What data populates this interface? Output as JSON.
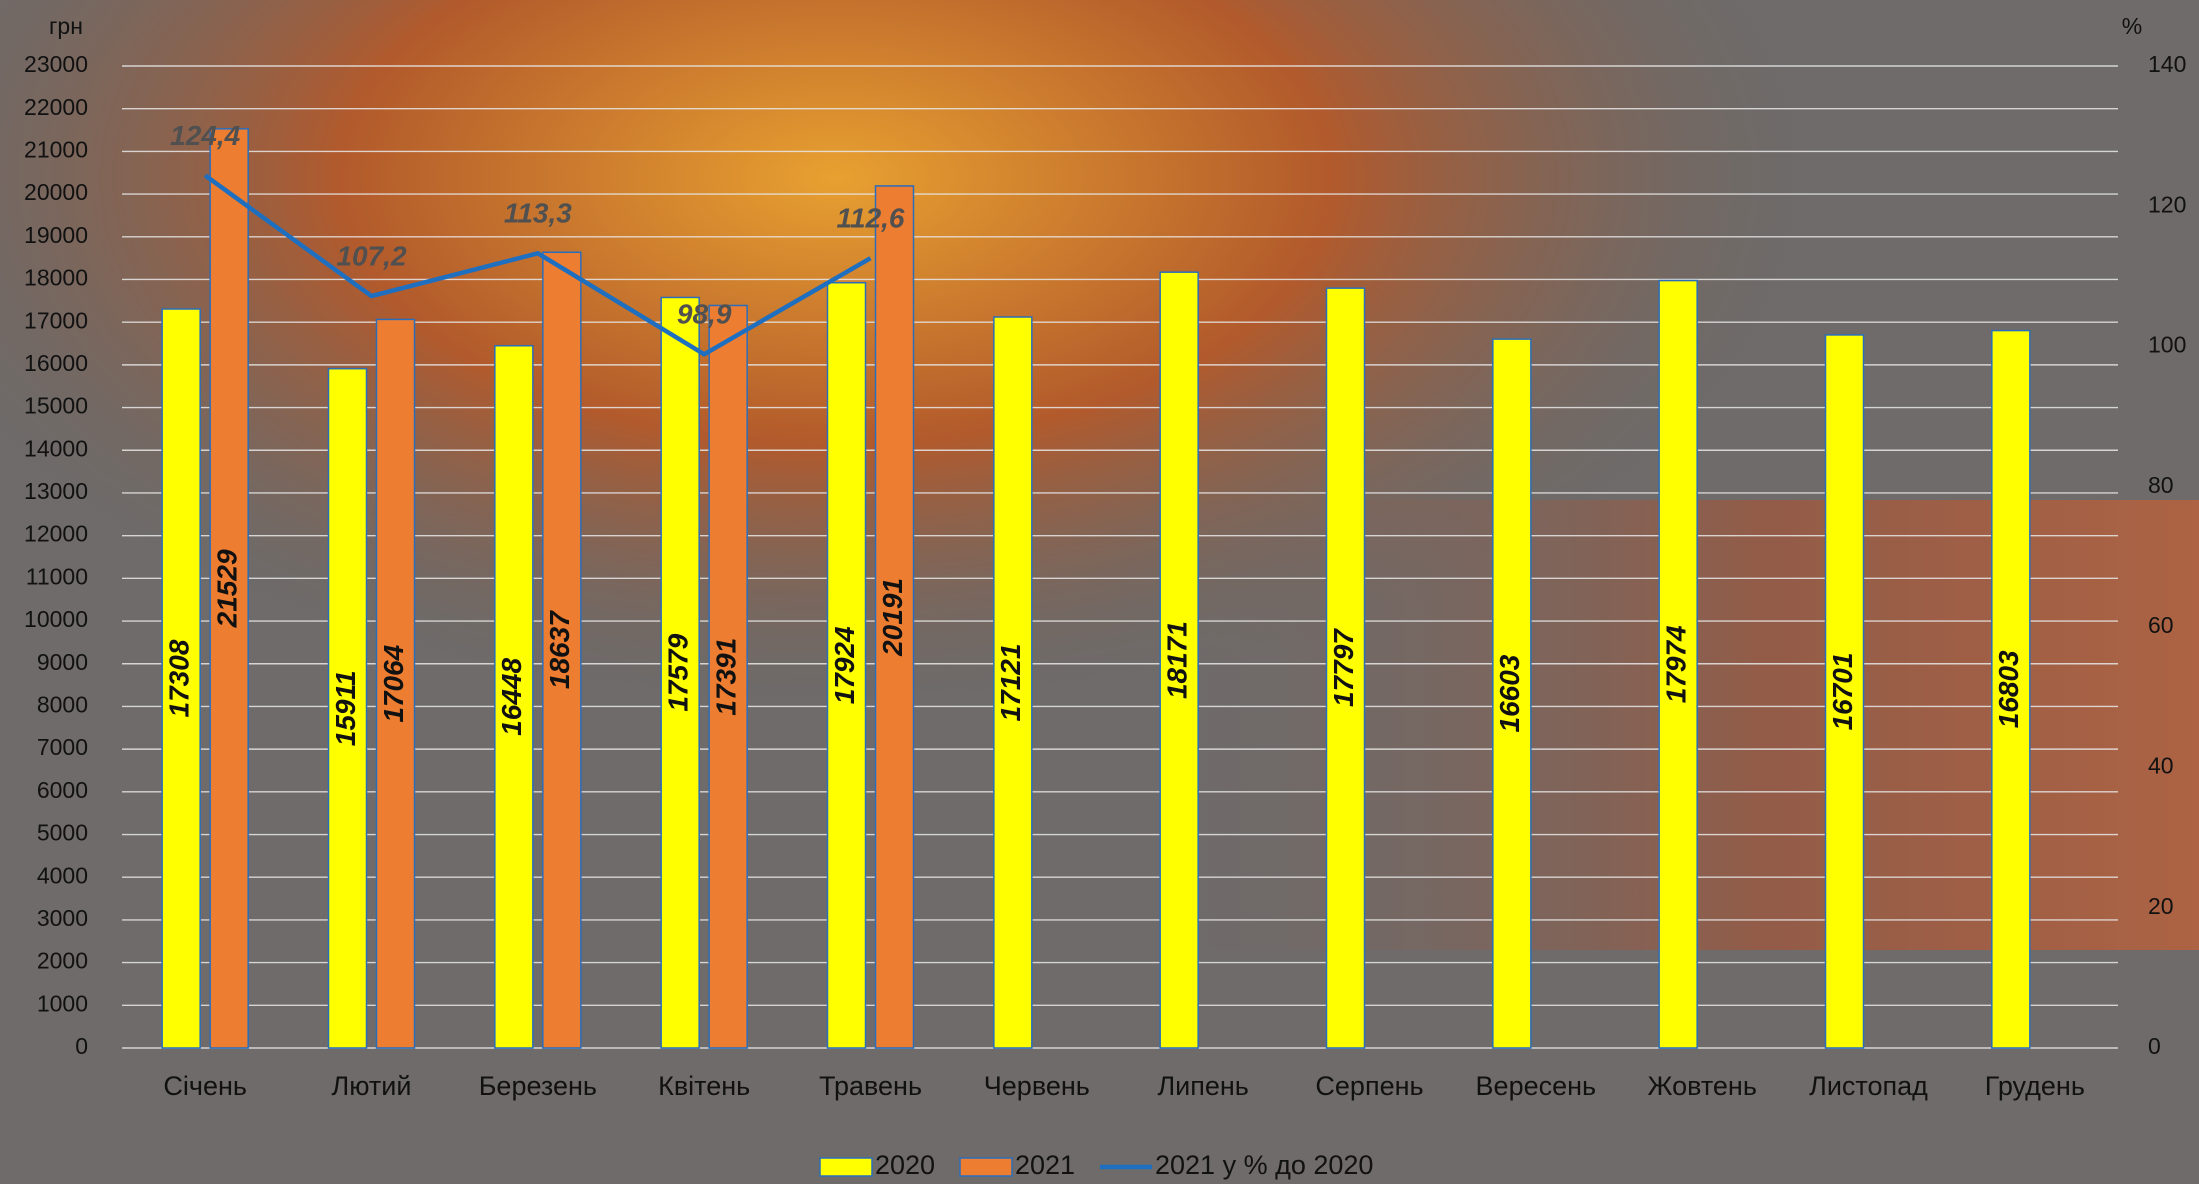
{
  "chart_data": {
    "type": "bar",
    "y_unit": "грн",
    "y2_unit": "%",
    "categories": [
      "Січень",
      "Лютий",
      "Березень",
      "Квітень",
      "Травень",
      "Червень",
      "Липень",
      "Серпень",
      "Вересень",
      "Жовтень",
      "Листопад",
      "Грудень"
    ],
    "series": [
      {
        "name": "2020",
        "type": "bar",
        "color": "#ffff00",
        "values": [
          17308,
          15911,
          16448,
          17579,
          17924,
          17121,
          18171,
          17797,
          16603,
          17974,
          16701,
          16803
        ]
      },
      {
        "name": "2021",
        "type": "bar",
        "color": "#ed7d31",
        "values": [
          21529,
          17064,
          18637,
          17391,
          20191,
          null,
          null,
          null,
          null,
          null,
          null,
          null
        ]
      },
      {
        "name": "2021 у % до 2020",
        "type": "line",
        "axis": "y2",
        "color": "#1f6fc0",
        "values": [
          124.4,
          107.2,
          113.3,
          98.9,
          112.6,
          null,
          null,
          null,
          null,
          null,
          null,
          null
        ],
        "value_labels": [
          "124,4",
          "107,2",
          "113,3",
          "98,9",
          "112,6",
          null,
          null,
          null,
          null,
          null,
          null,
          null
        ]
      }
    ],
    "ylim": [
      0,
      23000
    ],
    "yticks": [
      0,
      1000,
      2000,
      3000,
      4000,
      5000,
      6000,
      7000,
      8000,
      9000,
      10000,
      11000,
      12000,
      13000,
      14000,
      15000,
      16000,
      17000,
      18000,
      19000,
      20000,
      21000,
      22000,
      23000
    ],
    "y2lim": [
      0,
      140
    ],
    "y2ticks": [
      0,
      20,
      40,
      60,
      80,
      100,
      120,
      140
    ],
    "grid": true,
    "legend": "bottom"
  }
}
